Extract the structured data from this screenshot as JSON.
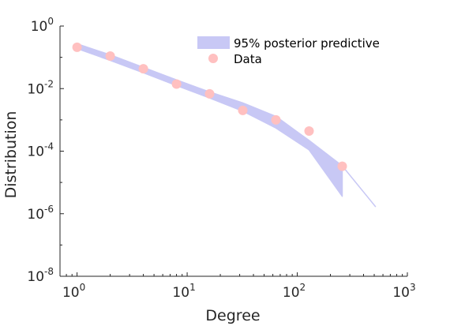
{
  "chart_data": {
    "type": "scatter",
    "xlabel": "Degree",
    "ylabel": "Distribution",
    "x_scale": "log",
    "y_scale": "log",
    "xlim": [
      0.7,
      1000
    ],
    "ylim": [
      1e-08,
      1
    ],
    "grid": false,
    "legend_position": "top-right",
    "x_ticks": [
      {
        "value": 1,
        "base": "10",
        "exp": "0"
      },
      {
        "value": 10,
        "base": "10",
        "exp": "1"
      },
      {
        "value": 100,
        "base": "10",
        "exp": "2"
      },
      {
        "value": 1000,
        "base": "10",
        "exp": "3"
      }
    ],
    "y_ticks": [
      {
        "value": 1,
        "base": "10",
        "exp": "0"
      },
      {
        "value": 0.01,
        "base": "10",
        "exp": "-2"
      },
      {
        "value": 0.0001,
        "base": "10",
        "exp": "-4"
      },
      {
        "value": 1e-06,
        "base": "10",
        "exp": "-6"
      },
      {
        "value": 1e-08,
        "base": "10",
        "exp": "-8"
      }
    ],
    "series": [
      {
        "name": "95% posterior predictive",
        "kind": "band",
        "color": "#c8c8f5",
        "x": [
          1,
          2,
          4,
          8,
          16,
          32,
          64,
          128,
          256,
          256,
          512
        ],
        "upper": [
          0.27,
          0.12,
          0.048,
          0.019,
          0.0078,
          0.0035,
          0.0013,
          0.00022,
          3.4e-05,
          3.4e-05,
          1.7e-06
        ],
        "lower": [
          0.19,
          0.08,
          0.032,
          0.0125,
          0.005,
          0.0019,
          0.00055,
          0.00011,
          3.6e-06,
          3.4e-05,
          1.7e-06
        ]
      },
      {
        "name": "Data",
        "kind": "points",
        "color": "#ffc0c0",
        "x": [
          1,
          2,
          4,
          8,
          16,
          32,
          64,
          128,
          256
        ],
        "y": [
          0.21,
          0.11,
          0.043,
          0.014,
          0.0068,
          0.002,
          0.001,
          0.00044,
          3.3e-05
        ]
      }
    ]
  }
}
